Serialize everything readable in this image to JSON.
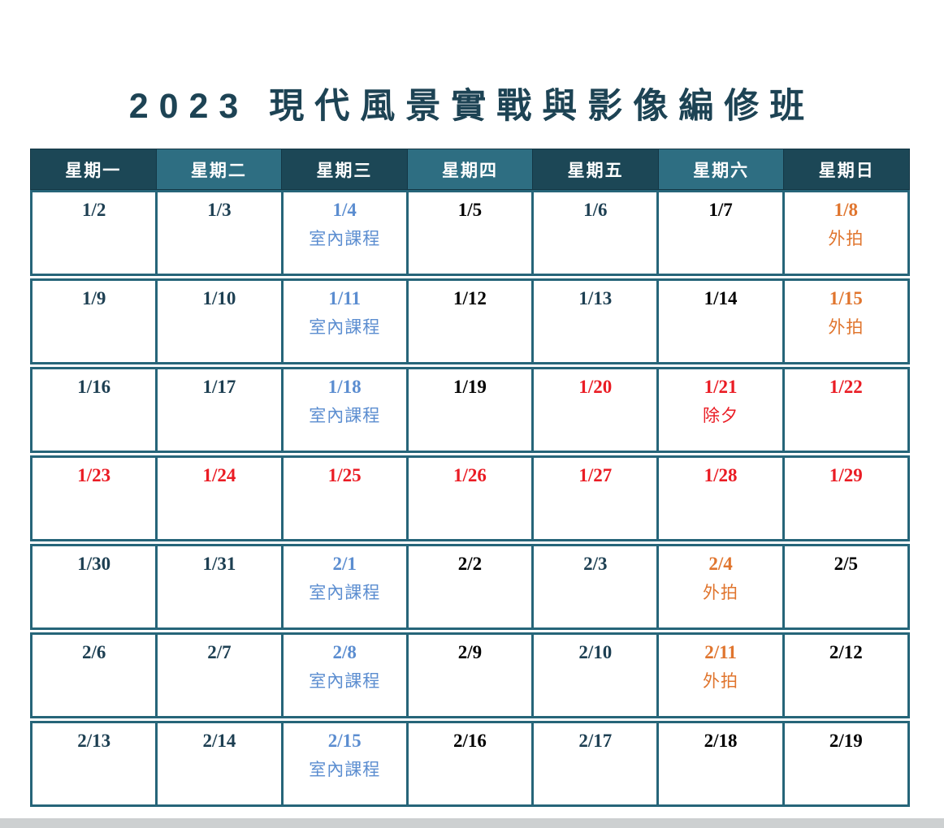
{
  "title": "2023 現代風景實戰與影像編修班",
  "colors": {
    "title_text": "#1d4354",
    "header_dark": "#1c4756",
    "header_light": "#2e6e82",
    "border_teal": "#266579",
    "date_navy": "#1d3f52",
    "date_black": "#000000",
    "indoor_blue": "#5b8dd0",
    "outdoor_orange": "#e0752e",
    "holiday_red": "#ea1c24"
  },
  "calendar": {
    "weekdays": [
      "星期一",
      "星期二",
      "星期三",
      "星期四",
      "星期五",
      "星期六",
      "星期日"
    ],
    "weeks": [
      [
        {
          "date": "1/2",
          "label": "",
          "color": "navy"
        },
        {
          "date": "1/3",
          "label": "",
          "color": "navy"
        },
        {
          "date": "1/4",
          "label": "室內課程",
          "color": "blue"
        },
        {
          "date": "1/5",
          "label": "",
          "color": "black"
        },
        {
          "date": "1/6",
          "label": "",
          "color": "navy"
        },
        {
          "date": "1/7",
          "label": "",
          "color": "black"
        },
        {
          "date": "1/8",
          "label": "外拍",
          "color": "orange"
        }
      ],
      [
        {
          "date": "1/9",
          "label": "",
          "color": "navy"
        },
        {
          "date": "1/10",
          "label": "",
          "color": "navy"
        },
        {
          "date": "1/11",
          "label": "室內課程",
          "color": "blue"
        },
        {
          "date": "1/12",
          "label": "",
          "color": "black"
        },
        {
          "date": "1/13",
          "label": "",
          "color": "navy"
        },
        {
          "date": "1/14",
          "label": "",
          "color": "black"
        },
        {
          "date": "1/15",
          "label": "外拍",
          "color": "orange"
        }
      ],
      [
        {
          "date": "1/16",
          "label": "",
          "color": "navy"
        },
        {
          "date": "1/17",
          "label": "",
          "color": "navy"
        },
        {
          "date": "1/18",
          "label": "室內課程",
          "color": "blue"
        },
        {
          "date": "1/19",
          "label": "",
          "color": "black"
        },
        {
          "date": "1/20",
          "label": "",
          "color": "red"
        },
        {
          "date": "1/21",
          "label": "除夕",
          "color": "red"
        },
        {
          "date": "1/22",
          "label": "",
          "color": "red"
        }
      ],
      [
        {
          "date": "1/23",
          "label": "",
          "color": "red"
        },
        {
          "date": "1/24",
          "label": "",
          "color": "red"
        },
        {
          "date": "1/25",
          "label": "",
          "color": "red"
        },
        {
          "date": "1/26",
          "label": "",
          "color": "red"
        },
        {
          "date": "1/27",
          "label": "",
          "color": "red"
        },
        {
          "date": "1/28",
          "label": "",
          "color": "red"
        },
        {
          "date": "1/29",
          "label": "",
          "color": "red"
        }
      ],
      [
        {
          "date": "1/30",
          "label": "",
          "color": "navy"
        },
        {
          "date": "1/31",
          "label": "",
          "color": "navy"
        },
        {
          "date": "2/1",
          "label": "室內課程",
          "color": "blue"
        },
        {
          "date": "2/2",
          "label": "",
          "color": "black"
        },
        {
          "date": "2/3",
          "label": "",
          "color": "navy"
        },
        {
          "date": "2/4",
          "label": "外拍",
          "color": "orange"
        },
        {
          "date": "2/5",
          "label": "",
          "color": "black"
        }
      ],
      [
        {
          "date": "2/6",
          "label": "",
          "color": "navy"
        },
        {
          "date": "2/7",
          "label": "",
          "color": "navy"
        },
        {
          "date": "2/8",
          "label": "室內課程",
          "color": "blue"
        },
        {
          "date": "2/9",
          "label": "",
          "color": "black"
        },
        {
          "date": "2/10",
          "label": "",
          "color": "navy"
        },
        {
          "date": "2/11",
          "label": "外拍",
          "color": "orange"
        },
        {
          "date": "2/12",
          "label": "",
          "color": "black"
        }
      ],
      [
        {
          "date": "2/13",
          "label": "",
          "color": "navy"
        },
        {
          "date": "2/14",
          "label": "",
          "color": "navy"
        },
        {
          "date": "2/15",
          "label": "室內課程",
          "color": "blue"
        },
        {
          "date": "2/16",
          "label": "",
          "color": "black"
        },
        {
          "date": "2/17",
          "label": "",
          "color": "navy"
        },
        {
          "date": "2/18",
          "label": "",
          "color": "black"
        },
        {
          "date": "2/19",
          "label": "",
          "color": "black"
        }
      ]
    ]
  }
}
